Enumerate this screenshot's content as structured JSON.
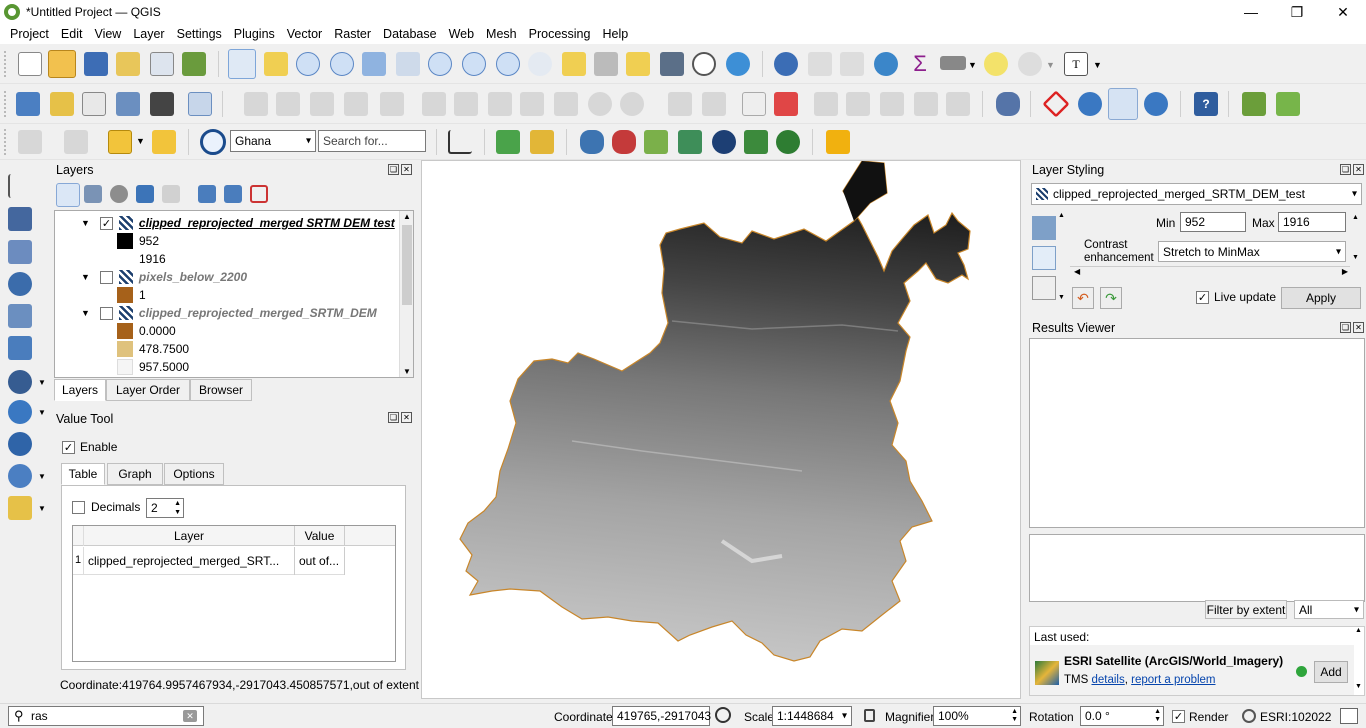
{
  "window": {
    "title": "*Untitled Project — QGIS"
  },
  "menu": [
    "Project",
    "Edit",
    "View",
    "Layer",
    "Settings",
    "Plugins",
    "Vector",
    "Raster",
    "Database",
    "Web",
    "Mesh",
    "Processing",
    "Help"
  ],
  "toolbar3": {
    "region_combo": "Ghana",
    "search_placeholder": "Search for..."
  },
  "layers_panel": {
    "title": "Layers",
    "items": [
      {
        "name": "clipped_reprojected_merged SRTM DEM test",
        "checked": true,
        "legend": [
          {
            "label": "952",
            "color": "#000000"
          },
          {
            "label": "1916",
            "color": "#ffffff"
          }
        ]
      },
      {
        "name": "pixels_below_2200",
        "checked": false,
        "legend": [
          {
            "label": "1",
            "color": "#a6611a"
          }
        ]
      },
      {
        "name": "clipped_reprojected_merged_SRTM_DEM",
        "checked": false,
        "legend": [
          {
            "label": "0.0000",
            "color": "#a6611a"
          },
          {
            "label": "478.7500",
            "color": "#dfc27d"
          },
          {
            "label": "957.5000",
            "color": "#f5f5f5"
          }
        ]
      }
    ],
    "tabs": [
      "Layers",
      "Layer Order",
      "Browser"
    ]
  },
  "value_tool": {
    "title": "Value Tool",
    "enable_label": "Enable",
    "tabs": [
      "Table",
      "Graph",
      "Options"
    ],
    "decimals_label": "Decimals",
    "decimals_value": "2",
    "columns": [
      "Layer",
      "Value"
    ],
    "rows": [
      {
        "index": "1",
        "layer": "clipped_reprojected_merged_SRT...",
        "value": "out of..."
      }
    ],
    "coordinate_readout": "Coordinate:419764.9957467934,-2917043.450857571,out of extent"
  },
  "layer_styling": {
    "title": "Layer Styling",
    "layer_combo": "clipped_reprojected_merged_SRTM_DEM_test",
    "min_label": "Min",
    "min_value": "952",
    "max_label": "Max",
    "max_value": "1916",
    "contrast_label": "Contrast enhancement",
    "contrast_value": "Stretch to MinMax",
    "live_update_label": "Live update",
    "apply_label": "Apply"
  },
  "results_viewer": {
    "title": "Results Viewer"
  },
  "browser_dock": {
    "filter_label": "Filter by extent",
    "filter_value": "All",
    "last_used_label": "Last used:",
    "item_title": "ESRI Satellite (ArcGIS/World_Imagery)",
    "item_type": "TMS",
    "details_link": "details",
    "separator": ",",
    "report_link": "report a problem",
    "add_label": "Add"
  },
  "statusbar": {
    "search_value": "ras",
    "coordinate_label": "Coordinate",
    "coordinate_value": "419765,-2917043",
    "scale_label": "Scale",
    "scale_value": "1:1448684",
    "magnifier_label": "Magnifier",
    "magnifier_value": "100%",
    "rotation_label": "Rotation",
    "rotation_value": "0.0 °",
    "render_label": "Render",
    "crs_label": "ESRI:102022"
  }
}
